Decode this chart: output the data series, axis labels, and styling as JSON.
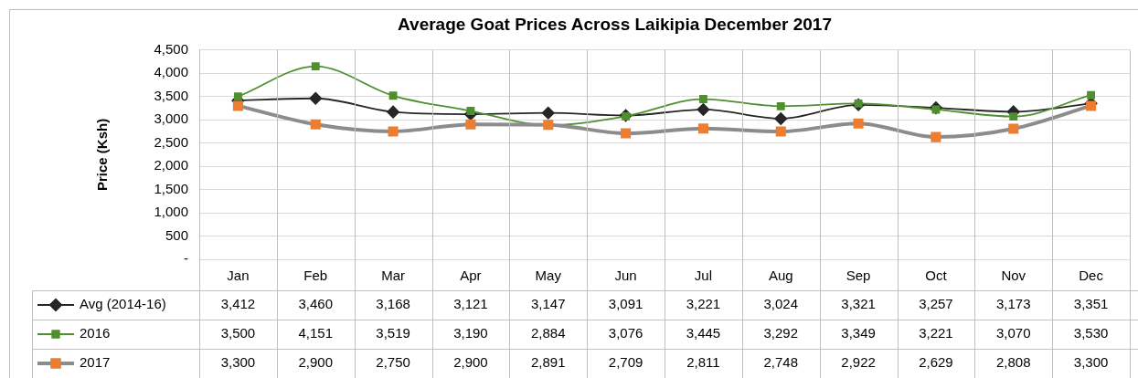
{
  "chart_data": {
    "type": "line",
    "title": "Average Goat Prices Across Laikipia December 2017",
    "ylabel": "Price (Ksh)",
    "categories": [
      "Jan",
      "Feb",
      "Mar",
      "Apr",
      "May",
      "Jun",
      "Jul",
      "Aug",
      "Sep",
      "Oct",
      "Nov",
      "Dec"
    ],
    "ylim": [
      0,
      4500
    ],
    "yticks": [
      {
        "value": 0,
        "label": "-"
      },
      500,
      {
        "value": 1000,
        "label": "1,000"
      },
      {
        "value": 1500,
        "label": "1,500"
      },
      {
        "value": 2000,
        "label": "2,000"
      },
      {
        "value": 2500,
        "label": "2,500"
      },
      {
        "value": 3000,
        "label": "3,000"
      },
      {
        "value": 3500,
        "label": "3,500"
      },
      {
        "value": 4000,
        "label": "4,000"
      },
      {
        "value": 4500,
        "label": "4,500"
      }
    ],
    "grid": true,
    "legend": "bottom",
    "series": [
      {
        "name": "Avg (2014-16)",
        "color": "#262626",
        "marker": "diamond",
        "values": [
          3412,
          3460,
          3168,
          3121,
          3147,
          3091,
          3221,
          3024,
          3321,
          3257,
          3173,
          3351
        ],
        "value_labels": [
          "3,412",
          "3,460",
          "3,168",
          "3,121",
          "3,147",
          "3,091",
          "3,221",
          "3,024",
          "3,321",
          "3,257",
          "3,173",
          "3,351"
        ]
      },
      {
        "name": "2016",
        "color": "#4f8f2f",
        "marker": "square",
        "values": [
          3500,
          4151,
          3519,
          3190,
          2884,
          3076,
          3445,
          3292,
          3349,
          3221,
          3070,
          3530
        ],
        "value_labels": [
          "3,500",
          "4,151",
          "3,519",
          "3,190",
          "2,884",
          "3,076",
          "3,445",
          "3,292",
          "3,349",
          "3,221",
          "3,070",
          "3,530"
        ]
      },
      {
        "name": "2017",
        "color": "#8c8c8c",
        "marker": "square",
        "colors": [
          "#ed7d31",
          "#ed7d31",
          "#ed7d31",
          "#ed7d31",
          "#ed7d31",
          "#ed7d31",
          "#ed7d31",
          "#ed7d31",
          "#ed7d31",
          "#ed7d31",
          "#ed7d31",
          "#ed7d31"
        ],
        "values": [
          3300,
          2900,
          2750,
          2900,
          2891,
          2709,
          2811,
          2748,
          2922,
          2629,
          2808,
          3300
        ],
        "value_labels": [
          "3,300",
          "2,900",
          "2,750",
          "2,900",
          "2,891",
          "2,709",
          "2,811",
          "2,748",
          "2,922",
          "2,629",
          "2,808",
          "3,300"
        ]
      }
    ]
  }
}
